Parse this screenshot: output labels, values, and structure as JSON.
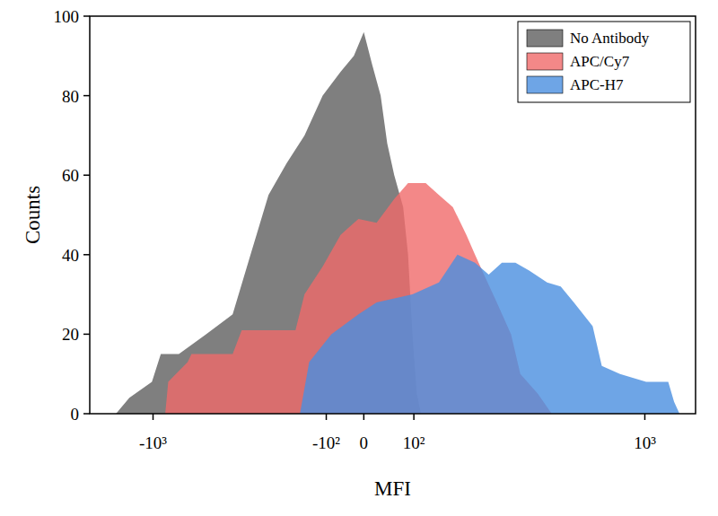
{
  "chart_data": {
    "type": "area",
    "x_label": "MFI",
    "y_label": "Counts",
    "log": "x",
    "legend": "top-right",
    "xlim": [
      -1850,
      1450
    ],
    "ylim": [
      0,
      100
    ],
    "xticks": [
      {
        "value": -1000,
        "label": "-10³"
      },
      {
        "value": -100,
        "label": "-10²"
      },
      0,
      {
        "value": 100,
        "label": "10²"
      },
      {
        "value": 1000,
        "label": "10³"
      }
    ],
    "yticks": [
      0,
      20,
      40,
      60,
      80,
      100
    ],
    "series": [
      {
        "name": "No Antibody",
        "color": "#7f7f7f",
        "x": [
          -1436,
          -1261,
          -1011,
          -926,
          -773,
          -584,
          -438,
          -356,
          -284,
          -220,
          -163,
          -110,
          -61,
          -26,
          0,
          16,
          33,
          46,
          60,
          78,
          88,
          97,
          106,
          115
        ],
        "values": [
          0,
          4,
          8,
          15,
          15,
          20,
          25,
          40,
          55,
          63,
          70,
          80,
          86,
          90,
          96,
          88,
          80,
          68,
          60,
          52,
          40,
          20,
          5,
          0
        ]
      },
      {
        "name": "APC/Cy7",
        "color": "#f06a6a",
        "x": [
          -886,
          -860,
          -707,
          -680,
          -438,
          -395,
          -191,
          -163,
          -110,
          -61,
          -14,
          25,
          60,
          88,
          125,
          154,
          186,
          219,
          241,
          265,
          301,
          344,
          374,
          435,
          488
        ],
        "values": [
          0,
          8,
          13,
          15,
          15,
          21,
          21,
          30,
          37,
          45,
          49,
          48,
          54,
          58,
          58,
          55,
          52,
          45,
          40,
          35,
          28,
          20,
          10,
          5,
          0
        ]
      },
      {
        "name": "APC-H7",
        "color": "#4a8fe0",
        "x": [
          -177,
          -149,
          -86,
          -14,
          25,
          97,
          154,
          197,
          241,
          278,
          316,
          358,
          404,
          470,
          525,
          583,
          675,
          724,
          831,
          1010,
          1188,
          1240,
          1290
        ],
        "values": [
          0,
          13,
          20,
          25,
          28,
          30,
          33,
          40,
          38,
          35,
          38,
          38,
          36,
          33,
          32,
          28,
          22,
          12,
          10,
          8,
          8,
          3,
          0
        ]
      }
    ]
  }
}
